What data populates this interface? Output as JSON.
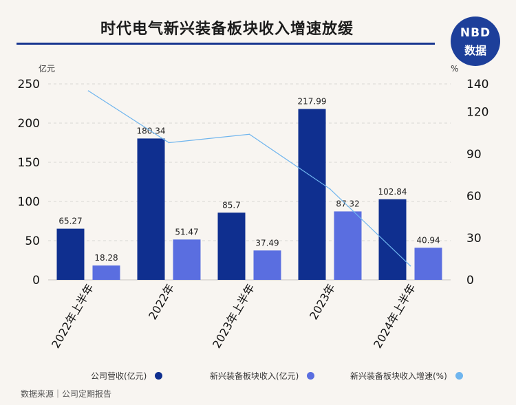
{
  "title": "时代电气新兴装备板块收入增速放缓",
  "logo": {
    "line1": "NBD",
    "line2": "数据"
  },
  "source": "数据来源｜公司定期报告",
  "colors": {
    "revenue": "#0f2f8f",
    "segment_revenue": "#5a6ee0",
    "growth": "#6fb5ee",
    "title_rule": "#17358f"
  },
  "legend": [
    {
      "label": "公司营收(亿元)",
      "color": "#0f2f8f"
    },
    {
      "label": "新兴装备板块收入(亿元)",
      "color": "#5a6ee0"
    },
    {
      "label": "新兴装备板块收入增速(%)",
      "color": "#6fb5ee"
    }
  ],
  "chart_data": {
    "type": "bar",
    "categories": [
      "2022年上半年",
      "2022年",
      "2023年上半年",
      "2023年",
      "2024年上半年"
    ],
    "series": [
      {
        "name": "公司营收(亿元)",
        "type": "bar",
        "axis": "left",
        "values": [
          65.27,
          180.34,
          85.7,
          217.99,
          102.84
        ]
      },
      {
        "name": "新兴装备板块收入(亿元)",
        "type": "bar",
        "axis": "left",
        "values": [
          18.28,
          51.47,
          37.49,
          87.32,
          40.94
        ]
      },
      {
        "name": "新兴装备板块收入增速(%)",
        "type": "line",
        "axis": "right",
        "values": [
          135,
          98,
          104,
          65,
          10
        ]
      }
    ],
    "ylabel": "亿元",
    "ylim": [
      0,
      250
    ],
    "yticks": [
      0,
      50,
      100,
      150,
      200,
      250
    ],
    "y2label": "%",
    "y2lim": [
      0,
      140
    ],
    "y2ticks": [
      0,
      30,
      60,
      90,
      120,
      140
    ],
    "grid": true,
    "legend_position": "bottom"
  }
}
